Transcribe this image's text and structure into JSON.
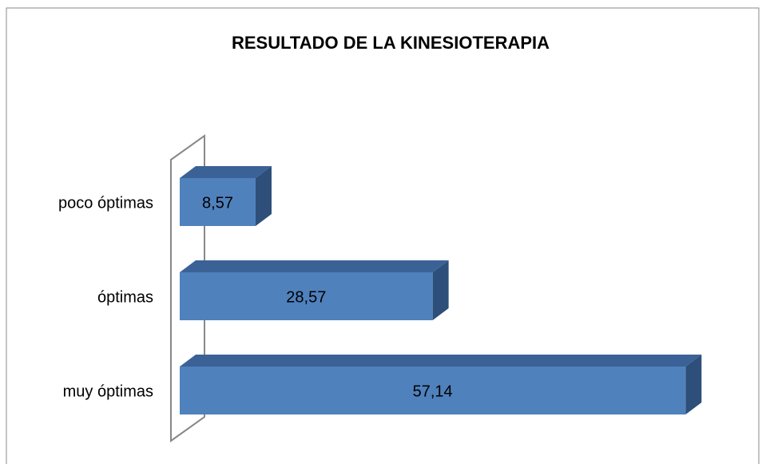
{
  "chart_data": {
    "type": "bar3d_horizontal",
    "title": "RESULTADO DE LA KINESIOTERAPIA",
    "categories": [
      "muy óptimas",
      "óptimas",
      "poco óptimas"
    ],
    "values": [
      57.14,
      28.57,
      8.57
    ],
    "value_labels": [
      "57,14",
      "28,57",
      "8,57"
    ],
    "color": "#4f81bd",
    "xlim": [
      0,
      60
    ]
  }
}
